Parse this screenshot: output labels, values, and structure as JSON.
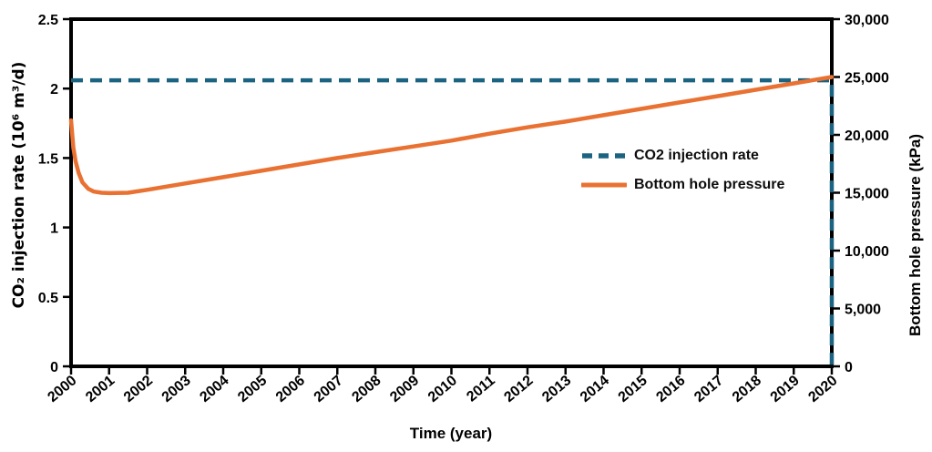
{
  "axes": {
    "x_title": "Time (year)",
    "y_left_title": "CO₂ injection rate (10⁶ m³/d)",
    "y_right_title": "Bottom hole pressure (kPa)"
  },
  "legend": {
    "items": [
      {
        "label": "CO2 injection rate",
        "style": "dashed",
        "color": "#1b6380"
      },
      {
        "label": "Bottom hole pressure",
        "style": "solid",
        "color": "#e97132"
      }
    ]
  },
  "colors": {
    "injection_rate": "#1b6380",
    "bottom_hole_pressure": "#e97132",
    "axis": "#000000",
    "background": "#ffffff"
  },
  "chart_data": {
    "type": "line",
    "title": "",
    "xlabel": "Time (year)",
    "ylabel_left": "CO₂ injection rate (10⁶ m³/d)",
    "ylabel_right": "Bottom hole pressure (kPa)",
    "x_range": [
      2000,
      2020
    ],
    "y_left_range": [
      0,
      2.5
    ],
    "y_right_range": [
      0,
      30000
    ],
    "grid": false,
    "legend_position": "inside-right",
    "x_tick_labels": [
      "2000",
      "2001",
      "2002",
      "2003",
      "2004",
      "2005",
      "2006",
      "2007",
      "2008",
      "2009",
      "2010",
      "2011",
      "2012",
      "2013",
      "2014",
      "2015",
      "2016",
      "2017",
      "2018",
      "2019",
      "2020"
    ],
    "y_left_tick_labels": [
      "0",
      "0.5",
      "1",
      "1.5",
      "2",
      "2.5"
    ],
    "y_right_tick_labels": [
      "0",
      "5,000",
      "10,000",
      "15,000",
      "20,000",
      "25,000",
      "30,000"
    ],
    "series": [
      {
        "name": "CO2 injection rate",
        "axis": "left",
        "color": "#1b6380",
        "line_style": "dashed",
        "points": [
          [
            2000,
            2.06
          ],
          [
            2020,
            2.06
          ],
          [
            2020,
            0
          ]
        ]
      },
      {
        "name": "Bottom hole pressure",
        "axis": "right",
        "color": "#e97132",
        "line_style": "solid",
        "points": [
          [
            2000.0,
            21250
          ],
          [
            2000.06,
            18900
          ],
          [
            2000.12,
            17700
          ],
          [
            2000.2,
            16700
          ],
          [
            2000.3,
            15900
          ],
          [
            2000.45,
            15350
          ],
          [
            2000.6,
            15100
          ],
          [
            2000.8,
            15000
          ],
          [
            2001.0,
            14970
          ],
          [
            2001.5,
            15000
          ],
          [
            2002,
            15250
          ],
          [
            2003,
            15800
          ],
          [
            2004,
            16350
          ],
          [
            2005,
            16900
          ],
          [
            2006,
            17450
          ],
          [
            2007,
            18000
          ],
          [
            2008,
            18500
          ],
          [
            2009,
            19000
          ],
          [
            2010,
            19500
          ],
          [
            2011,
            20100
          ],
          [
            2012,
            20650
          ],
          [
            2013,
            21150
          ],
          [
            2014,
            21700
          ],
          [
            2015,
            22250
          ],
          [
            2016,
            22800
          ],
          [
            2017,
            23350
          ],
          [
            2018,
            23900
          ],
          [
            2019,
            24450
          ],
          [
            2020,
            25000
          ]
        ]
      }
    ]
  }
}
